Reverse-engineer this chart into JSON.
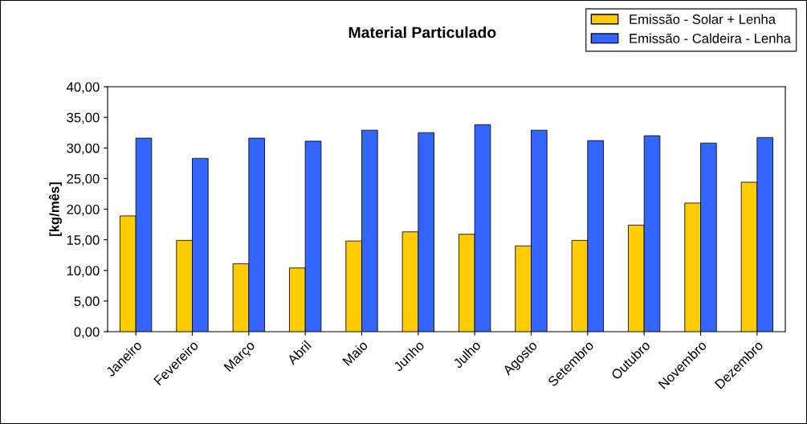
{
  "chart_data": {
    "type": "bar",
    "title": "Material Particulado",
    "ylabel": "[kg/mês]",
    "categories": [
      "Janeiro",
      "Fevereiro",
      "Março",
      "Abril",
      "Maio",
      "Junho",
      "Julho",
      "Agosto",
      "Setembro",
      "Outubro",
      "Novembro",
      "Dezembro"
    ],
    "series": [
      {
        "name": "Emissão - Solar + Lenha",
        "color": "#ffcc00",
        "values": [
          18.9,
          14.9,
          11.1,
          10.4,
          14.8,
          16.3,
          15.9,
          14.0,
          14.9,
          17.4,
          21.0,
          24.4
        ]
      },
      {
        "name": "Emissão - Caldeira - Lenha",
        "color": "#3366ff",
        "values": [
          31.6,
          28.3,
          31.6,
          31.1,
          32.9,
          32.5,
          33.8,
          32.9,
          31.2,
          32.0,
          30.8,
          31.7
        ]
      }
    ],
    "ylim": [
      0,
      40
    ],
    "yticks": [
      {
        "value": 0,
        "label": "0,00"
      },
      {
        "value": 5,
        "label": "5,00"
      },
      {
        "value": 10,
        "label": "10,00"
      },
      {
        "value": 15,
        "label": "15,00"
      },
      {
        "value": 20,
        "label": "20,00"
      },
      {
        "value": 25,
        "label": "25,00"
      },
      {
        "value": 30,
        "label": "30,00"
      },
      {
        "value": 35,
        "label": "35,00"
      },
      {
        "value": 40,
        "label": "40,00"
      }
    ],
    "grid": false,
    "legend": "top right"
  }
}
